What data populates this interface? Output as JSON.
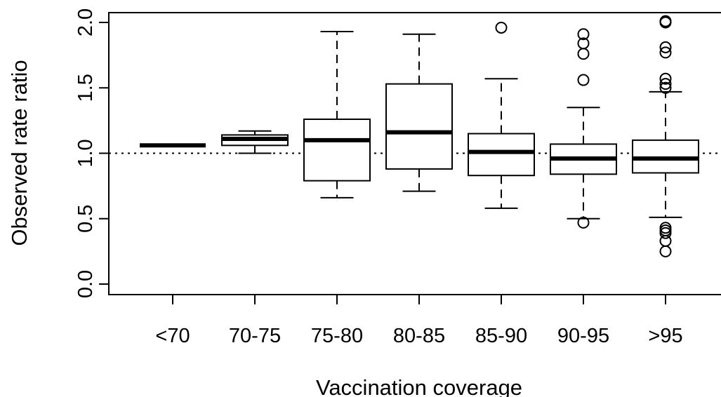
{
  "chart_data": {
    "type": "boxplot",
    "xlabel": "Vaccination coverage",
    "ylabel": "Observed rate ratio",
    "ylim": [
      0,
      2.0
    ],
    "yticks": [
      "0.0",
      "0.5",
      "1.0",
      "1.5",
      "2.0"
    ],
    "reference_line": 1.0,
    "categories": [
      "<70",
      "70-75",
      "75-80",
      "80-85",
      "85-90",
      "90-95",
      ">95"
    ],
    "boxes": [
      {
        "whisker_low": 1.06,
        "q1": 1.06,
        "median": 1.06,
        "q3": 1.06,
        "whisker_high": 1.06,
        "outliers": []
      },
      {
        "whisker_low": 1.0,
        "q1": 1.06,
        "median": 1.11,
        "q3": 1.14,
        "whisker_high": 1.17,
        "outliers": []
      },
      {
        "whisker_low": 0.66,
        "q1": 0.79,
        "median": 1.1,
        "q3": 1.26,
        "whisker_high": 1.93,
        "outliers": []
      },
      {
        "whisker_low": 0.71,
        "q1": 0.88,
        "median": 1.16,
        "q3": 1.53,
        "whisker_high": 1.91,
        "outliers": []
      },
      {
        "whisker_low": 0.58,
        "q1": 0.83,
        "median": 1.01,
        "q3": 1.15,
        "whisker_high": 1.57,
        "outliers": [
          1.96
        ]
      },
      {
        "whisker_low": 0.5,
        "q1": 0.84,
        "median": 0.96,
        "q3": 1.07,
        "whisker_high": 1.35,
        "outliers": [
          1.91,
          1.84,
          1.76,
          1.56,
          0.47
        ]
      },
      {
        "whisker_low": 0.51,
        "q1": 0.85,
        "median": 0.96,
        "q3": 1.1,
        "whisker_high": 1.47,
        "outliers": [
          2.0,
          2.01,
          1.81,
          1.77,
          1.57,
          1.53,
          1.5,
          0.43,
          0.41,
          0.39,
          0.33,
          0.25
        ]
      }
    ]
  }
}
